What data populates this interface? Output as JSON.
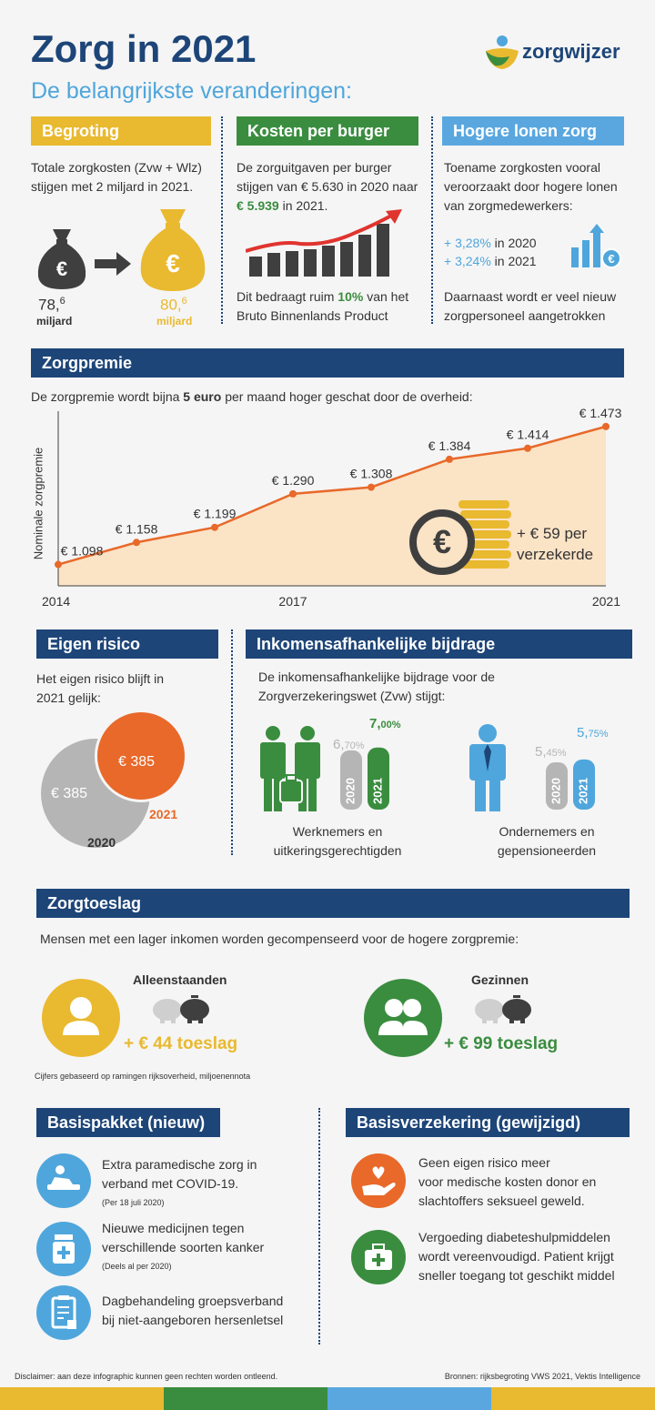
{
  "header": {
    "title": "Zorg in 2021",
    "subtitle": "De belangrijkste veranderingen:",
    "logo_text": "zorgwijzer"
  },
  "begroting": {
    "tag": "Begroting",
    "text": "Totale zorgkosten (Zvw + Wlz) stijgen met 2 miljard in 2021.",
    "from_value": "78,",
    "from_sup": "6",
    "from_unit": "miljard",
    "to_value": "80,",
    "to_sup": "6",
    "to_unit": "miljard",
    "euro": "€"
  },
  "kosten": {
    "tag": "Kosten per burger",
    "text_a": "De zorguitgaven per burger stijgen van € 5.630 in 2020 naar ",
    "text_highlight": "€ 5.939",
    "text_b": " in 2021.",
    "bottom_a": "Dit bedraagt ruim ",
    "bottom_highlight": "10%",
    "bottom_b": " van het Bruto Binnenlands Product"
  },
  "lonen": {
    "tag": "Hogere lonen zorg",
    "text": "Toename zorgkosten vooral veroorzaakt door hogere lonen van zorgmedewerkers:",
    "line1_pct": "+ 3,28%",
    "line1_year": " in 2020",
    "line2_pct": "+ 3,24%",
    "line2_year": " in 2021",
    "bottom": "Daarnaast wordt er veel nieuw zorgpersoneel aangetrokken",
    "euro": "€"
  },
  "zorgpremie": {
    "tag": "Zorgpremie",
    "intro_a": "De zorgpremie wordt bijna ",
    "intro_bold": "5 euro",
    "intro_b": " per maand hoger geschat door de overheid:",
    "callout_line1": "+ € 59 per",
    "callout_line2": "verzekerde",
    "euro": "€"
  },
  "chart_data": {
    "type": "area",
    "ylabel": "Nominale zorgpremie",
    "x": [
      2014,
      2015,
      2016,
      2017,
      2018,
      2019,
      2020,
      2021
    ],
    "x_tick_labels": [
      "2014",
      "2017",
      "2021"
    ],
    "values": [
      1098,
      1158,
      1199,
      1290,
      1308,
      1384,
      1414,
      1473
    ],
    "data_labels": [
      "€ 1.098",
      "€ 1.158",
      "€ 1.199",
      "€ 1.290",
      "€ 1.308",
      "€ 1.384",
      "€ 1.414",
      "€ 1.473"
    ],
    "line_color": "#e8692a",
    "fill_color": "#fbe3c6"
  },
  "eigenrisico": {
    "tag": "Eigen risico",
    "text": "Het eigen risico blijft in 2021 gelijk:",
    "value_2020": "€ 385",
    "value_2021": "€ 385",
    "year_2020": "2020",
    "year_2021": "2021"
  },
  "inkomens": {
    "tag": "Inkomensafhankelijke bijdrage",
    "text": "De inkomensafhankelijke bijdrage voor de Zorgverzekeringswet (Zvw) stijgt:",
    "group1": {
      "label_line1": "Werknemers en",
      "label_line2": "uitkeringsgerechtigden",
      "pct_2020_main": "6,",
      "pct_2020_dec": "70%",
      "pct_2021_main": "7,",
      "pct_2021_dec": "00%",
      "value_2020": 6.7,
      "value_2021": 7.0
    },
    "group2": {
      "label_line1": "Ondernemers en",
      "label_line2": "gepensioneerden",
      "pct_2020_main": "5,",
      "pct_2020_dec": "45%",
      "pct_2021_main": "5,",
      "pct_2021_dec": "75%",
      "value_2020": 5.45,
      "value_2021": 5.75
    },
    "year_2020": "2020",
    "year_2021": "2021"
  },
  "zorgtoeslag": {
    "tag": "Zorgtoeslag",
    "text": "Mensen met een lager inkomen worden gecompenseerd voor de hogere zorgpremie:",
    "single_label": "Alleenstaanden",
    "single_value": "+ € 44 toeslag",
    "family_label": "Gezinnen",
    "family_value": "+ € 99 toeslag",
    "footnote": "Cijfers gebaseerd op ramingen rijksoverheid, miljoenennota"
  },
  "basispakket": {
    "tag": "Basispakket (nieuw)",
    "items": [
      {
        "line1": "Extra paramedische zorg in",
        "line2": "verband met COVID-19.",
        "note": "(Per 18 juli 2020)"
      },
      {
        "line1": "Nieuwe medicijnen tegen",
        "line2": "verschillende soorten kanker",
        "note": "(Deels al per 2020)"
      },
      {
        "line1": "Dagbehandeling groepsverband",
        "line2": "bij niet-aangeboren hersenletsel",
        "note": ""
      }
    ]
  },
  "basisverzekering": {
    "tag": "Basisverzekering (gewijzigd)",
    "items": [
      {
        "line1": "Geen eigen risico meer",
        "line2": "voor medische kosten donor en",
        "line3": "slachtoffers seksueel geweld."
      },
      {
        "line1": "Vergoeding diabeteshulpmiddelen",
        "line2": "wordt vereenvoudigd. Patient krijgt",
        "line3": "sneller toegang tot geschikt middel"
      }
    ]
  },
  "footer": {
    "disclaimer": "Disclaimer: aan deze infographic kunnen geen rechten worden ontleend.",
    "sources": "Bronnen: rijksbegroting VWS 2021, Vektis Intelligence"
  },
  "colors": {
    "navy": "#1d4578",
    "yellow": "#e9b92f",
    "green": "#3a8d3f",
    "blue": "#5aa7df",
    "orange": "#e8692a",
    "gray": "#b5b5b5"
  }
}
